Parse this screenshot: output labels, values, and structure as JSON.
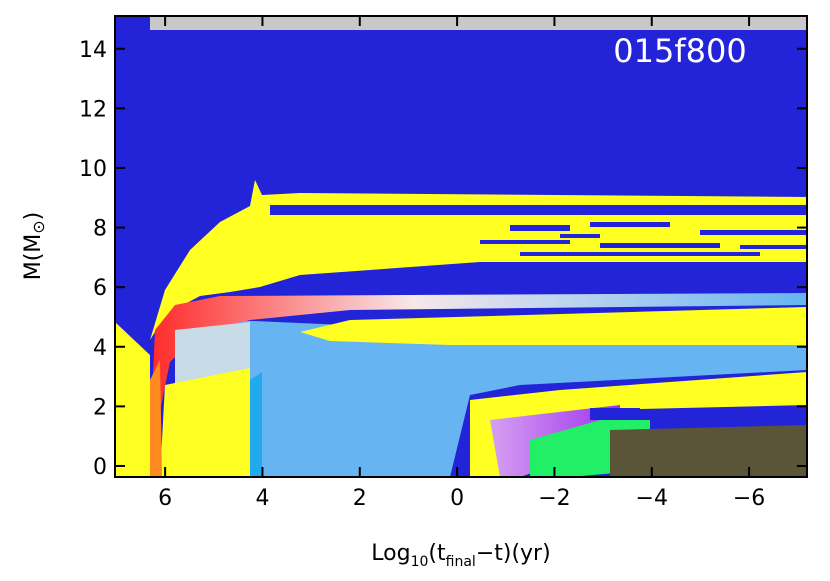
{
  "chart_data": {
    "type": "kippenhahn",
    "annotation": "015f800",
    "xlabel": {
      "main": "Log",
      "sub": "10",
      "open": "(t",
      "sub2": "final",
      "rest": "−t)(yr)"
    },
    "ylabel": {
      "main": "M(M",
      "sym": "⊙",
      "close": ")"
    },
    "xlim": [
      7.03,
      -7.19
    ],
    "ylim": [
      -0.37,
      15.1
    ],
    "xticks": [
      6,
      4,
      2,
      0,
      {
        "value": -2,
        "label": "−2"
      },
      {
        "value": -4,
        "label": "−4"
      },
      {
        "value": -6,
        "label": "−6"
      }
    ],
    "yticks": [
      0,
      2,
      4,
      6,
      8,
      10,
      12,
      14
    ]
  }
}
